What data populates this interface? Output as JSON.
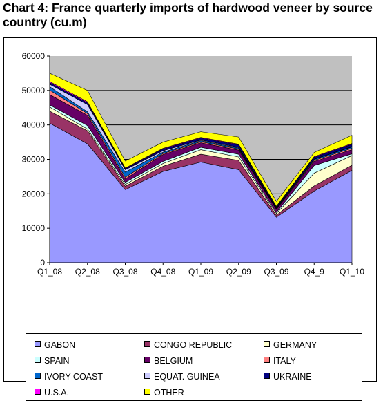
{
  "title": "Chart 4: France quarterly imports of hardwood veneer by source country (cu.m)",
  "chart_data": {
    "type": "area",
    "stacked": true,
    "categories": [
      "Q1_08",
      "Q2_08",
      "Q3_08",
      "Q4_08",
      "Q1_09",
      "Q2_09",
      "Q3_09",
      "Q4_9",
      "Q1_10"
    ],
    "ylim": [
      0,
      60000
    ],
    "yticks": [
      0,
      10000,
      20000,
      30000,
      40000,
      50000,
      60000
    ],
    "grid": true,
    "plot_background": "#c0c0c0",
    "legend_position": "bottom",
    "series": [
      {
        "name": "GABON",
        "color": "#9999ff",
        "values": [
          40500,
          34500,
          21200,
          26500,
          29200,
          27000,
          13200,
          20800,
          26800
        ]
      },
      {
        "name": "CONGO REPUBLIC",
        "color": "#993366",
        "values": [
          3500,
          3800,
          1000,
          1500,
          2300,
          2700,
          600,
          1500,
          1500
        ]
      },
      {
        "name": "GERMANY",
        "color": "#ffffcc",
        "values": [
          1200,
          500,
          500,
          800,
          1300,
          1000,
          500,
          3700,
          2800
        ]
      },
      {
        "name": "SPAIN",
        "color": "#ccffff",
        "values": [
          600,
          1000,
          600,
          600,
          700,
          800,
          300,
          2200,
          500
        ]
      },
      {
        "name": "BELGIUM",
        "color": "#660066",
        "values": [
          3000,
          3000,
          1000,
          2000,
          1300,
          1200,
          900,
          1200,
          1200
        ]
      },
      {
        "name": "ITALY",
        "color": "#ff8080",
        "values": [
          1300,
          500,
          500,
          300,
          300,
          300,
          200,
          300,
          400
        ]
      },
      {
        "name": "IVORY COAST",
        "color": "#0066cc",
        "values": [
          1000,
          500,
          1500,
          400,
          300,
          300,
          200,
          300,
          400
        ]
      },
      {
        "name": "EQUAT. GUINEA",
        "color": "#ccccff",
        "values": [
          700,
          2100,
          700,
          400,
          200,
          200,
          100,
          100,
          100
        ]
      },
      {
        "name": "UKRAINE",
        "color": "#000080",
        "values": [
          500,
          500,
          300,
          500,
          600,
          700,
          300,
          500,
          700
        ]
      },
      {
        "name": "U.S.A.",
        "color": "#ff00ff",
        "values": [
          300,
          300,
          200,
          200,
          200,
          200,
          100,
          200,
          200
        ]
      },
      {
        "name": "OTHER",
        "color": "#ffff00",
        "values": [
          2400,
          3300,
          2000,
          1800,
          1600,
          2100,
          1400,
          1200,
          2400
        ]
      }
    ]
  }
}
